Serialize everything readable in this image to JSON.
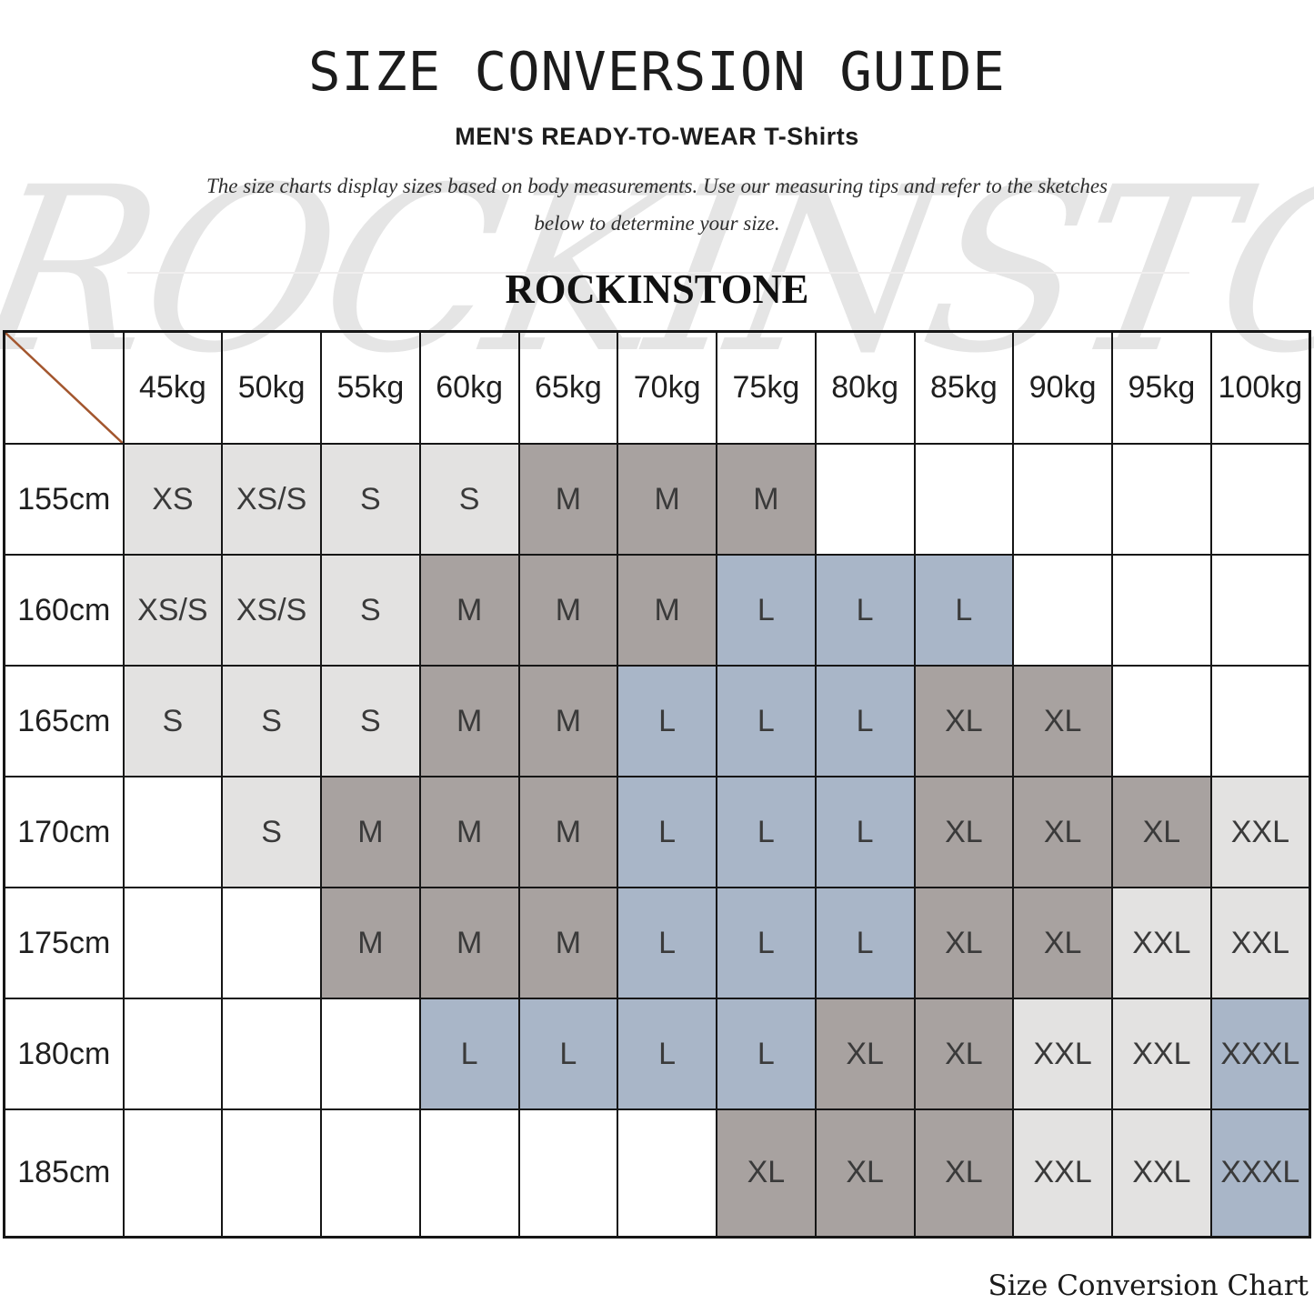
{
  "title": "SIZE CONVERSION GUIDE",
  "subtitle": "MEN'S READY-TO-WEAR T-Shirts",
  "description": {
    "line1": "The size charts display sizes based on body measurements. Use our measuring tips and refer to the sketches",
    "line2": "below to determine your size."
  },
  "brand": "ROCKINSTONE",
  "watermark": "ROCKINSTONE",
  "footer": "Size Conversion Chart",
  "colors": {
    "light": "#e3e2e1",
    "taupe": "#a8a2a0",
    "blue": "#a9b6c8",
    "diagonal": "#a3562e",
    "border": "#161616"
  },
  "table": {
    "weight_headers": [
      "45kg",
      "50kg",
      "55kg",
      "60kg",
      "65kg",
      "70kg",
      "75kg",
      "80kg",
      "85kg",
      "90kg",
      "95kg",
      "100kg"
    ],
    "rows": [
      {
        "height": "155cm",
        "cells": [
          "XS|light",
          "XS/S|light",
          "S|light",
          "S|light",
          "M|taupe",
          "M|taupe",
          "M|taupe",
          "",
          "",
          "",
          "",
          ""
        ]
      },
      {
        "height": "160cm",
        "cells": [
          "XS/S|light",
          "XS/S|light",
          "S|light",
          "M|taupe",
          "M|taupe",
          "M|taupe",
          "L|blue",
          "L|blue",
          "L|blue",
          "",
          "",
          ""
        ]
      },
      {
        "height": "165cm",
        "cells": [
          "S|light",
          "S|light",
          "S|light",
          "M|taupe",
          "M|taupe",
          "L|blue",
          "L|blue",
          "L|blue",
          "XL|taupe",
          "XL|taupe",
          "",
          ""
        ]
      },
      {
        "height": "170cm",
        "cells": [
          "",
          "S|light",
          "M|taupe",
          "M|taupe",
          "M|taupe",
          "L|blue",
          "L|blue",
          "L|blue",
          "XL|taupe",
          "XL|taupe",
          "XL|taupe",
          "XXL|light"
        ]
      },
      {
        "height": "175cm",
        "cells": [
          "",
          "",
          "M|taupe",
          "M|taupe",
          "M|taupe",
          "L|blue",
          "L|blue",
          "L|blue",
          "XL|taupe",
          "XL|taupe",
          "XXL|light",
          "XXL|light"
        ]
      },
      {
        "height": "180cm",
        "cells": [
          "",
          "",
          "",
          "L|blue",
          "L|blue",
          "L|blue",
          "L|blue",
          "XL|taupe",
          "XL|taupe",
          "XXL|light",
          "XXL|light",
          "XXXL|blue"
        ]
      },
      {
        "height": "185cm",
        "cells": [
          "",
          "",
          "",
          "",
          "",
          "",
          "XL|taupe",
          "XL|taupe",
          "XL|taupe",
          "XXL|light",
          "XXL|light",
          "XXXL|blue"
        ]
      }
    ]
  },
  "chart_data": {
    "type": "table",
    "title": "Size Conversion Chart",
    "columns_unit": "weight",
    "rows_unit": "height",
    "columns": [
      "45kg",
      "50kg",
      "55kg",
      "60kg",
      "65kg",
      "70kg",
      "75kg",
      "80kg",
      "85kg",
      "90kg",
      "95kg",
      "100kg"
    ],
    "rows": [
      "155cm",
      "160cm",
      "165cm",
      "170cm",
      "175cm",
      "180cm",
      "185cm"
    ],
    "values": [
      [
        "XS",
        "XS/S",
        "S",
        "S",
        "M",
        "M",
        "M",
        "",
        "",
        "",
        "",
        ""
      ],
      [
        "XS/S",
        "XS/S",
        "S",
        "M",
        "M",
        "M",
        "L",
        "L",
        "L",
        "",
        "",
        ""
      ],
      [
        "S",
        "S",
        "S",
        "M",
        "M",
        "L",
        "L",
        "L",
        "XL",
        "XL",
        "",
        ""
      ],
      [
        "",
        "S",
        "M",
        "M",
        "M",
        "L",
        "L",
        "L",
        "XL",
        "XL",
        "XL",
        "XXL"
      ],
      [
        "",
        "",
        "M",
        "M",
        "M",
        "L",
        "L",
        "L",
        "XL",
        "XL",
        "XXL",
        "XXL"
      ],
      [
        "",
        "",
        "",
        "L",
        "L",
        "L",
        "L",
        "XL",
        "XL",
        "XXL",
        "XXL",
        "XXXL"
      ],
      [
        "",
        "",
        "",
        "",
        "",
        "",
        "XL",
        "XL",
        "XL",
        "XXL",
        "XXL",
        "XXXL"
      ]
    ]
  }
}
